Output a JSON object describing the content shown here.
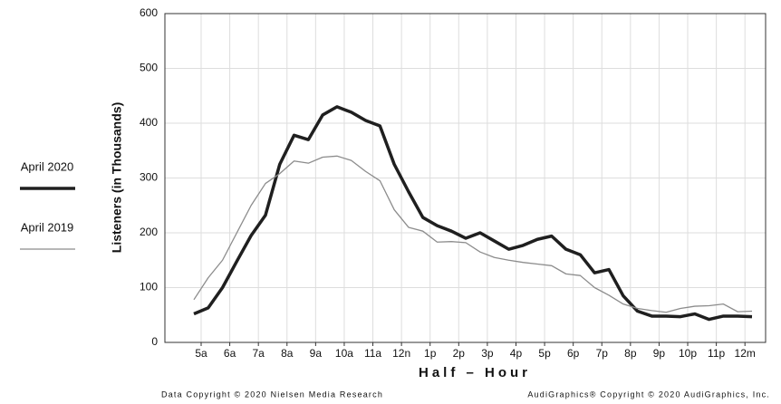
{
  "chart_data": {
    "type": "line",
    "y_label": "Listeners (in Thousands)",
    "x_label": "Half – Hour",
    "footer_left": "Data Copyright © 2020 Nielsen Media Research",
    "footer_right": "AudiGraphics® Copyright © 2020 AudiGraphics, Inc.",
    "categories": [
      "5a",
      null,
      "6a",
      null,
      "7a",
      null,
      "8a",
      null,
      "9a",
      null,
      "10a",
      null,
      "11a",
      null,
      "12n",
      null,
      "1p",
      null,
      "2p",
      null,
      "3p",
      null,
      "4p",
      null,
      "5p",
      null,
      "6p",
      null,
      "7p",
      null,
      "8p",
      null,
      "9p",
      null,
      "10p",
      null,
      "11p",
      null,
      "12m",
      null
    ],
    "series": [
      {
        "name": "April 2020",
        "color": "#1f1f1f",
        "width": 3.5,
        "values": [
          52,
          63,
          100,
          148,
          195,
          232,
          325,
          378,
          370,
          415,
          430,
          420,
          405,
          395,
          325,
          275,
          228,
          213,
          203,
          190,
          200,
          185,
          170,
          177,
          188,
          194,
          170,
          160,
          127,
          133,
          85,
          57,
          48,
          48,
          47,
          52,
          42,
          48,
          48,
          47
        ]
      },
      {
        "name": "April 2019",
        "color": "#8c8c8c",
        "width": 1.3,
        "values": [
          78,
          118,
          150,
          200,
          250,
          290,
          308,
          331,
          327,
          338,
          340,
          332,
          312,
          295,
          242,
          210,
          203,
          183,
          184,
          182,
          165,
          155,
          150,
          146,
          143,
          140,
          125,
          122,
          100,
          86,
          70,
          62,
          58,
          55,
          62,
          66,
          67,
          70,
          56,
          57
        ]
      }
    ],
    "ylim": [
      0,
      600
    ],
    "yticks": [
      0,
      100,
      200,
      300,
      400,
      500,
      600
    ],
    "grid": true
  }
}
